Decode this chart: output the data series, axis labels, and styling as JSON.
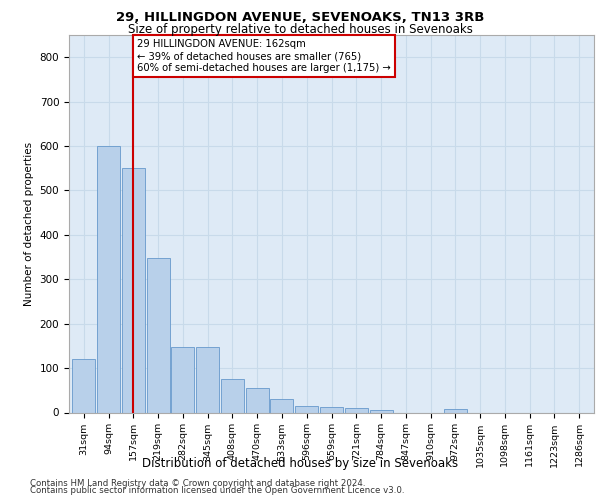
{
  "title1": "29, HILLINGDON AVENUE, SEVENOAKS, TN13 3RB",
  "title2": "Size of property relative to detached houses in Sevenoaks",
  "xlabel": "Distribution of detached houses by size in Sevenoaks",
  "ylabel": "Number of detached properties",
  "categories": [
    "31sqm",
    "94sqm",
    "157sqm",
    "219sqm",
    "282sqm",
    "345sqm",
    "408sqm",
    "470sqm",
    "533sqm",
    "596sqm",
    "659sqm",
    "721sqm",
    "784sqm",
    "847sqm",
    "910sqm",
    "972sqm",
    "1035sqm",
    "1098sqm",
    "1161sqm",
    "1223sqm",
    "1286sqm"
  ],
  "values": [
    120,
    600,
    550,
    347,
    148,
    148,
    75,
    55,
    30,
    15,
    12,
    10,
    5,
    0,
    0,
    8,
    0,
    0,
    0,
    0,
    0
  ],
  "bar_color": "#b8d0ea",
  "bar_edge_color": "#6699cc",
  "vline_x": 2,
  "vline_color": "#cc0000",
  "annotation_text": "29 HILLINGDON AVENUE: 162sqm\n← 39% of detached houses are smaller (765)\n60% of semi-detached houses are larger (1,175) →",
  "annotation_box_color": "#ffffff",
  "annotation_box_edge_color": "#cc0000",
  "ylim": [
    0,
    850
  ],
  "yticks": [
    0,
    100,
    200,
    300,
    400,
    500,
    600,
    700,
    800
  ],
  "grid_color": "#c8daea",
  "background_color": "#deeaf6",
  "footer1": "Contains HM Land Registry data © Crown copyright and database right 2024.",
  "footer2": "Contains public sector information licensed under the Open Government Licence v3.0."
}
